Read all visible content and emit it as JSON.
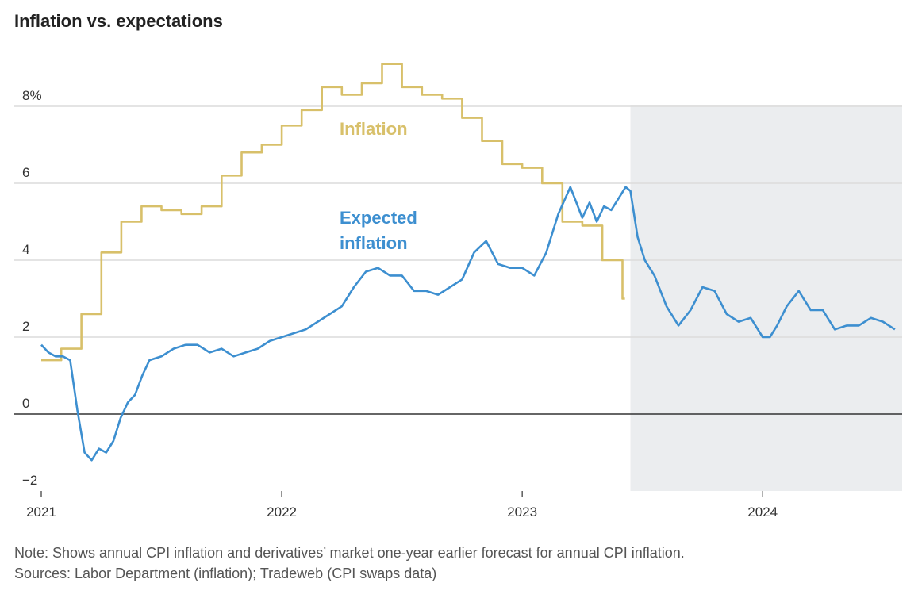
{
  "title": "Inflation vs. expectations",
  "notes": {
    "note": "Note: Shows annual CPI inflation and derivatives’ market one-year earlier forecast for annual CPI inflation.",
    "sources": "Sources: Labor Department (inflation); Tradeweb (CPI swaps data)"
  },
  "colors": {
    "inflation": "#d8c06a",
    "expected": "#3d8fd0",
    "shade": "#ebedef",
    "grid": "#dcdcdc",
    "zero": "#333333"
  },
  "chart_data": {
    "type": "line",
    "title": "Inflation vs. expectations",
    "xlabel": "",
    "ylabel": "",
    "xlim": [
      2021.0,
      2024.58
    ],
    "ylim": [
      -2,
      9
    ],
    "y_ticks": [
      {
        "value": 8,
        "label": "8%"
      },
      {
        "value": 6,
        "label": "6"
      },
      {
        "value": 4,
        "label": "4"
      },
      {
        "value": 2,
        "label": "2"
      },
      {
        "value": 0,
        "label": "0"
      },
      {
        "value": -2,
        "label": "−2"
      }
    ],
    "x_ticks": [
      {
        "value": 2021,
        "label": "2021"
      },
      {
        "value": 2022,
        "label": "2022"
      },
      {
        "value": 2023,
        "label": "2023"
      },
      {
        "value": 2024,
        "label": "2024"
      }
    ],
    "grid": true,
    "legend": "none",
    "shaded_region": {
      "x_start": 2023.45,
      "x_end": 2024.58
    },
    "annotations": [
      {
        "text": "Inflation",
        "series": "Inflation"
      },
      {
        "text": "Expected",
        "series": "Expected inflation"
      },
      {
        "text": "inflation",
        "series": "Expected inflation"
      }
    ],
    "series": [
      {
        "name": "Inflation",
        "step": true,
        "x": [
          2021.0,
          2021.083,
          2021.167,
          2021.25,
          2021.333,
          2021.417,
          2021.5,
          2021.583,
          2021.667,
          2021.75,
          2021.833,
          2021.917,
          2022.0,
          2022.083,
          2022.167,
          2022.25,
          2022.333,
          2022.417,
          2022.5,
          2022.583,
          2022.667,
          2022.75,
          2022.833,
          2022.917,
          2023.0,
          2023.083,
          2023.167,
          2023.25,
          2023.333,
          2023.417
        ],
        "y": [
          1.4,
          1.7,
          2.6,
          4.2,
          5.0,
          5.4,
          5.3,
          5.2,
          5.4,
          6.2,
          6.8,
          7.0,
          7.5,
          7.9,
          8.5,
          8.3,
          8.6,
          9.1,
          8.5,
          8.3,
          8.2,
          7.7,
          7.1,
          6.5,
          6.4,
          6.0,
          5.0,
          4.9,
          4.0,
          3.0
        ]
      },
      {
        "name": "Expected inflation",
        "step": false,
        "x": [
          2021.0,
          2021.03,
          2021.06,
          2021.09,
          2021.12,
          2021.15,
          2021.18,
          2021.21,
          2021.24,
          2021.27,
          2021.3,
          2021.33,
          2021.36,
          2021.39,
          2021.42,
          2021.45,
          2021.5,
          2021.55,
          2021.6,
          2021.65,
          2021.7,
          2021.75,
          2021.8,
          2021.85,
          2021.9,
          2021.95,
          2022.0,
          2022.05,
          2022.1,
          2022.15,
          2022.2,
          2022.25,
          2022.3,
          2022.35,
          2022.4,
          2022.45,
          2022.5,
          2022.55,
          2022.6,
          2022.65,
          2022.7,
          2022.75,
          2022.8,
          2022.85,
          2022.9,
          2022.95,
          2023.0,
          2023.05,
          2023.1,
          2023.15,
          2023.2,
          2023.25,
          2023.28,
          2023.31,
          2023.34,
          2023.37,
          2023.4,
          2023.43,
          2023.45,
          2023.48,
          2023.51,
          2023.55,
          2023.6,
          2023.65,
          2023.7,
          2023.75,
          2023.8,
          2023.85,
          2023.9,
          2023.95,
          2024.0,
          2024.03,
          2024.06,
          2024.1,
          2024.15,
          2024.2,
          2024.25,
          2024.3,
          2024.35,
          2024.4,
          2024.45,
          2024.5,
          2024.55
        ],
        "y": [
          1.8,
          1.6,
          1.5,
          1.5,
          1.4,
          0.1,
          -1.0,
          -1.2,
          -0.9,
          -1.0,
          -0.7,
          -0.1,
          0.3,
          0.5,
          1.0,
          1.4,
          1.5,
          1.7,
          1.8,
          1.8,
          1.6,
          1.7,
          1.5,
          1.6,
          1.7,
          1.9,
          2.0,
          2.1,
          2.2,
          2.4,
          2.6,
          2.8,
          3.3,
          3.7,
          3.8,
          3.6,
          3.6,
          3.2,
          3.2,
          3.1,
          3.3,
          3.5,
          4.2,
          4.5,
          3.9,
          3.8,
          3.8,
          3.6,
          4.2,
          5.2,
          5.9,
          5.1,
          5.5,
          5.0,
          5.4,
          5.3,
          5.6,
          5.9,
          5.8,
          4.6,
          4.0,
          3.6,
          2.8,
          2.3,
          2.7,
          3.3,
          3.2,
          2.6,
          2.4,
          2.5,
          2.0,
          2.0,
          2.3,
          2.8,
          3.2,
          2.7,
          2.7,
          2.2,
          2.3,
          2.3,
          2.5,
          2.4,
          2.2
        ]
      }
    ]
  }
}
